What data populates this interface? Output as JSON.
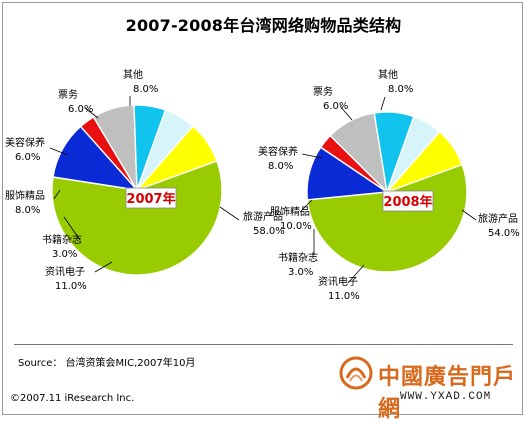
{
  "title": "2007-2008年台湾网络购物品类结构",
  "source_text": "Source： 台湾资策会MIC,2007年10月",
  "copyright_text": "©2007.11 iResearch Inc.",
  "watermark": {
    "chinese": "中國廣告門戶網",
    "url": "WWW.YXAD.COM"
  },
  "colors": {
    "旅游产品": "#99cc00",
    "资讯电子": "#0a2ad6",
    "书籍杂志": "#e81010",
    "服饰精品": "#bfbfbf",
    "美容保养": "#11c4ee",
    "票务": "#d7f4fb",
    "其他": "#ffff00"
  },
  "chart_data": [
    {
      "type": "pie",
      "year_label": "2007年",
      "slices": [
        {
          "name": "旅游产品",
          "value": 58.0,
          "value_label": "58.0%"
        },
        {
          "name": "资讯电子",
          "value": 11.0,
          "value_label": "11.0%"
        },
        {
          "name": "书籍杂志",
          "value": 3.0,
          "value_label": "3.0%"
        },
        {
          "name": "服饰精品",
          "value": 8.0,
          "value_label": "8.0%"
        },
        {
          "name": "美容保养",
          "value": 6.0,
          "value_label": "6.0%"
        },
        {
          "name": "票务",
          "value": 6.0,
          "value_label": "6.0%"
        },
        {
          "name": "其他",
          "value": 8.0,
          "value_label": "8.0%"
        }
      ]
    },
    {
      "type": "pie",
      "year_label": "2008年",
      "slices": [
        {
          "name": "旅游产品",
          "value": 54.0,
          "value_label": "54.0%"
        },
        {
          "name": "资讯电子",
          "value": 11.0,
          "value_label": "11.0%"
        },
        {
          "name": "书籍杂志",
          "value": 3.0,
          "value_label": "3.0%"
        },
        {
          "name": "服饰精品",
          "value": 10.0,
          "value_label": "10.0%"
        },
        {
          "name": "美容保养",
          "value": 8.0,
          "value_label": "8.0%"
        },
        {
          "name": "票务",
          "value": 6.0,
          "value_label": "6.0%"
        },
        {
          "name": "其他",
          "value": 8.0,
          "value_label": "8.0%"
        }
      ]
    }
  ]
}
